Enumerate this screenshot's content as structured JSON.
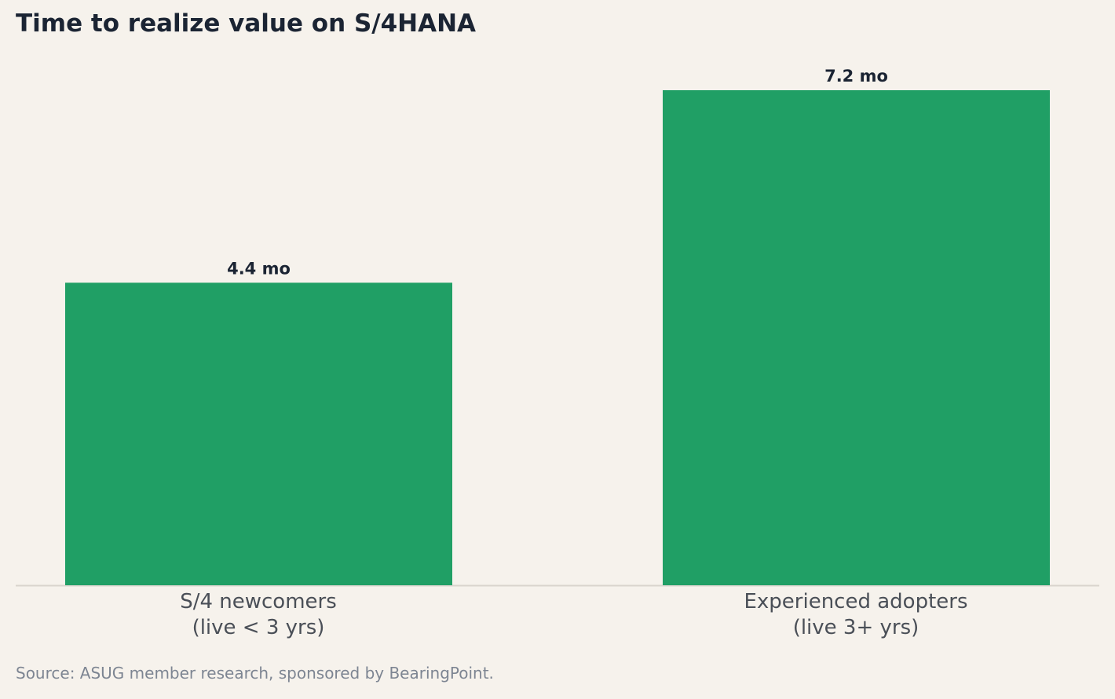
{
  "chart_data": {
    "type": "bar",
    "title": "Time to realize value on S/4HANA",
    "categories": [
      [
        "S/4 newcomers",
        "(live < 3 yrs)"
      ],
      [
        "Experienced adopters",
        "(live 3+ yrs)"
      ]
    ],
    "values": [
      4.4,
      7.2
    ],
    "value_labels": [
      "4.4 mo",
      "7.2 mo"
    ],
    "xlabel": "",
    "ylabel": "",
    "ylim": [
      0,
      7.2
    ],
    "grid": false,
    "legend": "none",
    "bar_color": "#209f65",
    "baseline_color": "#d9d4cd"
  },
  "source": "Source: ASUG member research, sponsored by BearingPoint."
}
